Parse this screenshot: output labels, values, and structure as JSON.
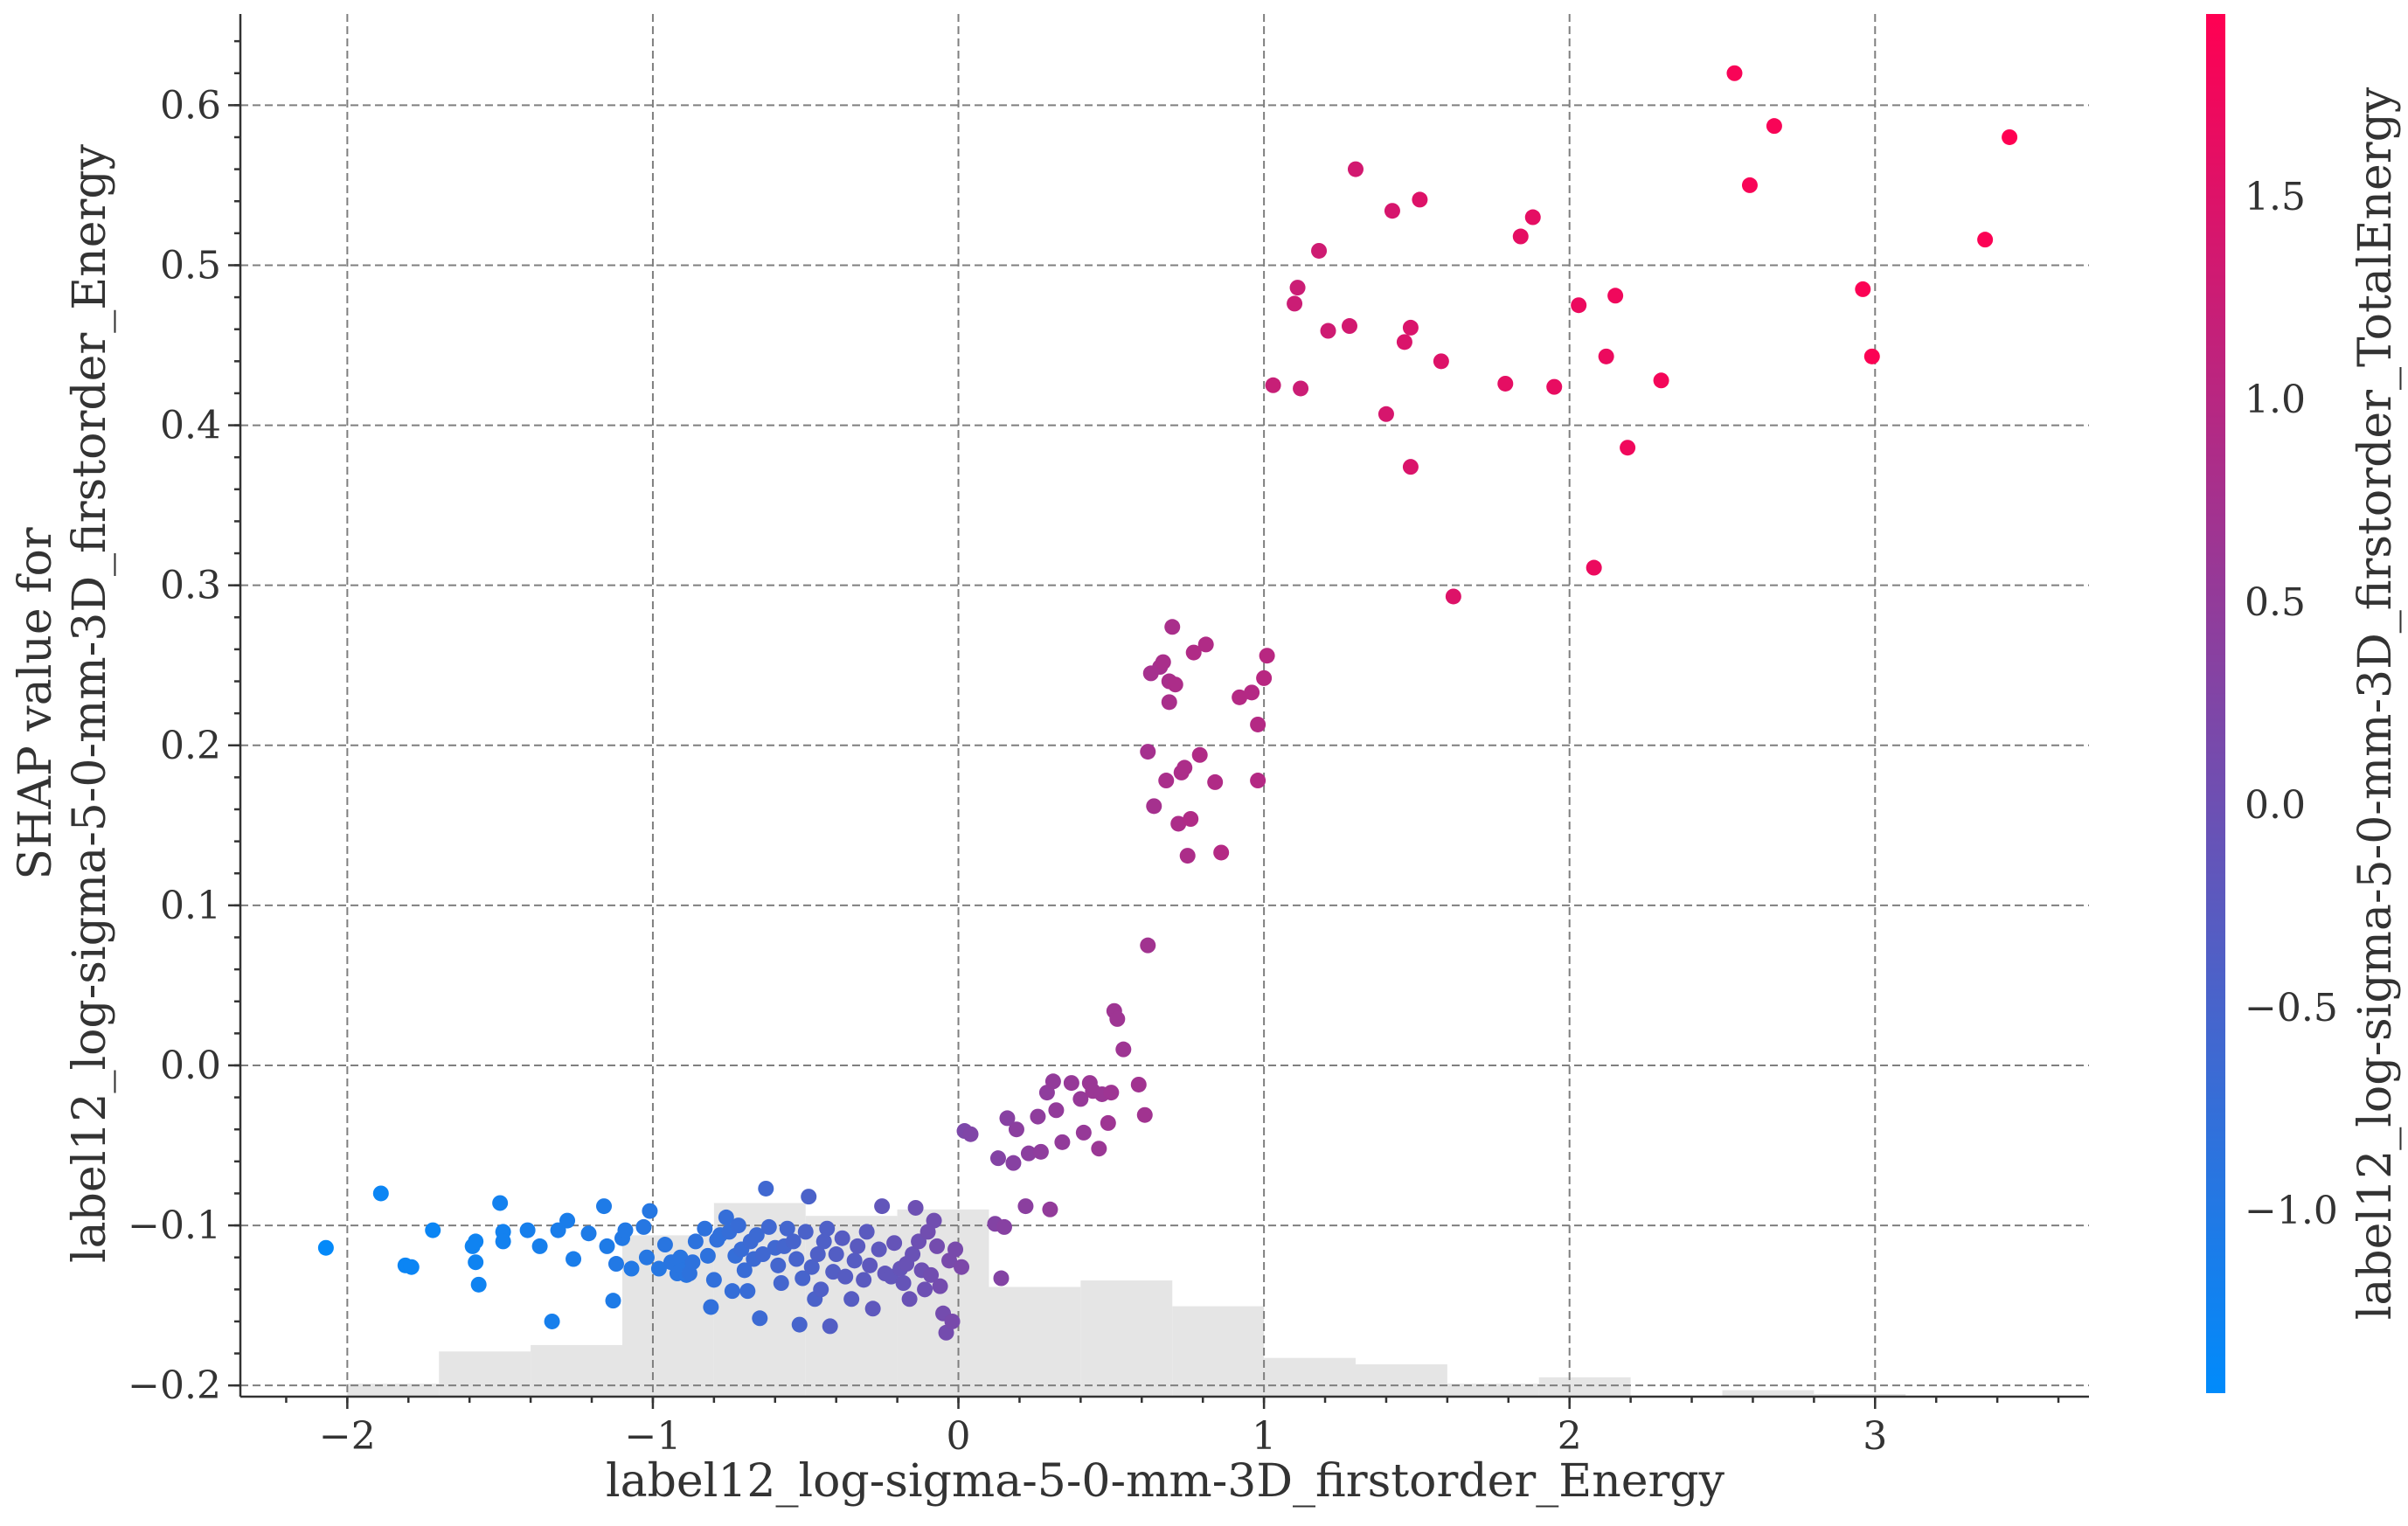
{
  "chart_data": {
    "type": "scatter",
    "title": "",
    "xlabel": "label12_log-sigma-5-0-mm-3D_firstorder_Energy",
    "ylabel": "SHAP value for\nlabel12_log-sigma-5-0-mm-3D_firstorder_Energy",
    "colorbar_label": "label12_log-sigma-5-0-mm-3D_firstorder_TotalEnergy",
    "xlim": [
      -2.35,
      3.7
    ],
    "ylim": [
      -0.207,
      0.657
    ],
    "x_ticks": [
      -2,
      -1,
      0,
      1,
      2,
      3
    ],
    "x_tick_labels": [
      "−2",
      "−1",
      "0",
      "1",
      "2",
      "3"
    ],
    "y_ticks": [
      -0.2,
      -0.1,
      0.0,
      0.1,
      0.2,
      0.3,
      0.4,
      0.5,
      0.6
    ],
    "y_tick_labels": [
      "−0.2",
      "−0.1",
      "0.0",
      "0.1",
      "0.2",
      "0.3",
      "0.4",
      "0.5",
      "0.6"
    ],
    "colorbar_range": [
      -1.45,
      1.95
    ],
    "colorbar_ticks": [
      -1.0,
      -0.5,
      0.0,
      0.5,
      1.0,
      1.5
    ],
    "colorbar_tick_labels": [
      "−1.0",
      "−0.5",
      "0.0",
      "0.5",
      "1.0",
      "1.5"
    ],
    "colormap": [
      "#008bfb",
      "#ff0052"
    ],
    "grid": true,
    "histogram_color": "#e5e5e5",
    "histogram": {
      "bin_edges": [
        -2.0,
        -1.7,
        -1.4,
        -1.1,
        -0.8,
        -0.5,
        -0.2,
        0.1,
        0.4,
        0.7,
        1.0,
        1.3,
        1.6,
        1.9,
        2.2,
        2.5,
        2.8,
        3.1,
        3.4
      ],
      "counts": [
        2,
        7,
        8,
        25,
        30,
        28,
        29,
        17,
        18,
        14,
        6,
        5,
        2,
        3,
        0,
        1,
        0.4,
        0
      ]
    },
    "points": [
      {
        "x": -2.07,
        "y": -0.114,
        "c": -1.4
      },
      {
        "x": -1.89,
        "y": -0.08,
        "c": -1.3
      },
      {
        "x": -1.81,
        "y": -0.125,
        "c": -1.3
      },
      {
        "x": -1.79,
        "y": -0.126,
        "c": -1.3
      },
      {
        "x": -1.72,
        "y": -0.103,
        "c": -1.3
      },
      {
        "x": -1.59,
        "y": -0.113,
        "c": -1.25
      },
      {
        "x": -1.58,
        "y": -0.11,
        "c": -1.25
      },
      {
        "x": -1.58,
        "y": -0.123,
        "c": -1.25
      },
      {
        "x": -1.57,
        "y": -0.137,
        "c": -1.25
      },
      {
        "x": -1.5,
        "y": -0.086,
        "c": -1.2
      },
      {
        "x": -1.49,
        "y": -0.104,
        "c": -1.2
      },
      {
        "x": -1.49,
        "y": -0.11,
        "c": -1.2
      },
      {
        "x": -1.41,
        "y": -0.103,
        "c": -1.15
      },
      {
        "x": -1.37,
        "y": -0.113,
        "c": -1.15
      },
      {
        "x": -1.33,
        "y": -0.16,
        "c": -1.15
      },
      {
        "x": -1.31,
        "y": -0.103,
        "c": -1.1
      },
      {
        "x": -1.28,
        "y": -0.097,
        "c": -1.1
      },
      {
        "x": -1.26,
        "y": -0.121,
        "c": -1.1
      },
      {
        "x": -1.21,
        "y": -0.105,
        "c": -1.05
      },
      {
        "x": -1.16,
        "y": -0.088,
        "c": -1.05
      },
      {
        "x": -1.15,
        "y": -0.113,
        "c": -1.05
      },
      {
        "x": -1.13,
        "y": -0.147,
        "c": -1.05
      },
      {
        "x": -1.12,
        "y": -0.124,
        "c": -1.0
      },
      {
        "x": -1.1,
        "y": -0.108,
        "c": -1.0
      },
      {
        "x": -1.09,
        "y": -0.103,
        "c": -1.0
      },
      {
        "x": -1.07,
        "y": -0.127,
        "c": -1.0
      },
      {
        "x": -1.03,
        "y": -0.101,
        "c": -0.95
      },
      {
        "x": -1.02,
        "y": -0.12,
        "c": -0.95
      },
      {
        "x": -1.01,
        "y": -0.091,
        "c": -0.95
      },
      {
        "x": -0.98,
        "y": -0.127,
        "c": -0.95
      },
      {
        "x": -0.96,
        "y": -0.112,
        "c": -0.9
      },
      {
        "x": -0.94,
        "y": -0.123,
        "c": -0.9
      },
      {
        "x": -0.92,
        "y": -0.13,
        "c": -0.9
      },
      {
        "x": -0.91,
        "y": -0.12,
        "c": -0.9
      },
      {
        "x": -0.9,
        "y": -0.128,
        "c": -0.9
      },
      {
        "x": -0.89,
        "y": -0.131,
        "c": -0.9
      },
      {
        "x": -0.88,
        "y": -0.13,
        "c": -0.85
      },
      {
        "x": -0.87,
        "y": -0.123,
        "c": -0.85
      },
      {
        "x": -0.86,
        "y": -0.11,
        "c": -0.85
      },
      {
        "x": -0.83,
        "y": -0.102,
        "c": -0.85
      },
      {
        "x": -0.82,
        "y": -0.119,
        "c": -0.85
      },
      {
        "x": -0.81,
        "y": -0.151,
        "c": -0.8
      },
      {
        "x": -0.8,
        "y": -0.134,
        "c": -0.8
      },
      {
        "x": -0.79,
        "y": -0.109,
        "c": -0.8
      },
      {
        "x": -0.78,
        "y": -0.106,
        "c": -0.8
      },
      {
        "x": -0.76,
        "y": -0.095,
        "c": -0.75
      },
      {
        "x": -0.75,
        "y": -0.104,
        "c": -0.75
      },
      {
        "x": -0.74,
        "y": -0.141,
        "c": -0.75
      },
      {
        "x": -0.73,
        "y": -0.119,
        "c": -0.75
      },
      {
        "x": -0.72,
        "y": -0.1,
        "c": -0.7
      },
      {
        "x": -0.71,
        "y": -0.115,
        "c": -0.7
      },
      {
        "x": -0.7,
        "y": -0.128,
        "c": -0.7
      },
      {
        "x": -0.69,
        "y": -0.141,
        "c": -0.7
      },
      {
        "x": -0.68,
        "y": -0.11,
        "c": -0.65
      },
      {
        "x": -0.67,
        "y": -0.121,
        "c": -0.65
      },
      {
        "x": -0.66,
        "y": -0.106,
        "c": -0.65
      },
      {
        "x": -0.65,
        "y": -0.158,
        "c": -0.65
      },
      {
        "x": -0.64,
        "y": -0.118,
        "c": -0.6
      },
      {
        "x": -0.63,
        "y": -0.077,
        "c": -0.6
      },
      {
        "x": -0.62,
        "y": -0.101,
        "c": -0.6
      },
      {
        "x": -0.6,
        "y": -0.114,
        "c": -0.6
      },
      {
        "x": -0.59,
        "y": -0.125,
        "c": -0.55
      },
      {
        "x": -0.58,
        "y": -0.136,
        "c": -0.55
      },
      {
        "x": -0.57,
        "y": -0.113,
        "c": -0.55
      },
      {
        "x": -0.56,
        "y": -0.102,
        "c": -0.55
      },
      {
        "x": -0.54,
        "y": -0.11,
        "c": -0.5
      },
      {
        "x": -0.53,
        "y": -0.121,
        "c": -0.5
      },
      {
        "x": -0.52,
        "y": -0.162,
        "c": -0.5
      },
      {
        "x": -0.51,
        "y": -0.133,
        "c": -0.5
      },
      {
        "x": -0.5,
        "y": -0.104,
        "c": -0.45
      },
      {
        "x": -0.49,
        "y": -0.082,
        "c": -0.45
      },
      {
        "x": -0.48,
        "y": -0.126,
        "c": -0.45
      },
      {
        "x": -0.47,
        "y": -0.146,
        "c": -0.45
      },
      {
        "x": -0.46,
        "y": -0.118,
        "c": -0.4
      },
      {
        "x": -0.45,
        "y": -0.14,
        "c": -0.4
      },
      {
        "x": -0.44,
        "y": -0.11,
        "c": -0.4
      },
      {
        "x": -0.43,
        "y": -0.102,
        "c": -0.4
      },
      {
        "x": -0.42,
        "y": -0.163,
        "c": -0.35
      },
      {
        "x": -0.41,
        "y": -0.129,
        "c": -0.35
      },
      {
        "x": -0.4,
        "y": -0.118,
        "c": -0.35
      },
      {
        "x": -0.38,
        "y": -0.108,
        "c": -0.3
      },
      {
        "x": -0.37,
        "y": -0.132,
        "c": -0.3
      },
      {
        "x": -0.35,
        "y": -0.146,
        "c": -0.3
      },
      {
        "x": -0.34,
        "y": -0.122,
        "c": -0.3
      },
      {
        "x": -0.33,
        "y": -0.113,
        "c": -0.25
      },
      {
        "x": -0.31,
        "y": -0.134,
        "c": -0.25
      },
      {
        "x": -0.3,
        "y": -0.104,
        "c": -0.25
      },
      {
        "x": -0.29,
        "y": -0.125,
        "c": -0.2
      },
      {
        "x": -0.28,
        "y": -0.152,
        "c": -0.2
      },
      {
        "x": -0.26,
        "y": -0.115,
        "c": -0.2
      },
      {
        "x": -0.25,
        "y": -0.088,
        "c": -0.15
      },
      {
        "x": -0.24,
        "y": -0.13,
        "c": -0.15
      },
      {
        "x": -0.22,
        "y": -0.132,
        "c": -0.15
      },
      {
        "x": -0.21,
        "y": -0.111,
        "c": -0.1
      },
      {
        "x": -0.19,
        "y": -0.127,
        "c": -0.1
      },
      {
        "x": -0.18,
        "y": -0.136,
        "c": -0.1
      },
      {
        "x": -0.17,
        "y": -0.124,
        "c": -0.05
      },
      {
        "x": -0.16,
        "y": -0.146,
        "c": -0.05
      },
      {
        "x": -0.15,
        "y": -0.118,
        "c": -0.05
      },
      {
        "x": -0.14,
        "y": -0.089,
        "c": 0.0
      },
      {
        "x": -0.13,
        "y": -0.11,
        "c": 0.0
      },
      {
        "x": -0.12,
        "y": -0.128,
        "c": 0.0
      },
      {
        "x": -0.11,
        "y": -0.14,
        "c": 0.0
      },
      {
        "x": -0.1,
        "y": -0.104,
        "c": 0.05
      },
      {
        "x": -0.09,
        "y": -0.131,
        "c": 0.05
      },
      {
        "x": -0.08,
        "y": -0.097,
        "c": 0.05
      },
      {
        "x": -0.07,
        "y": -0.113,
        "c": 0.1
      },
      {
        "x": -0.06,
        "y": -0.138,
        "c": 0.1
      },
      {
        "x": -0.05,
        "y": -0.155,
        "c": 0.1
      },
      {
        "x": -0.04,
        "y": -0.167,
        "c": 0.1
      },
      {
        "x": -0.03,
        "y": -0.122,
        "c": 0.15
      },
      {
        "x": -0.02,
        "y": -0.16,
        "c": 0.15
      },
      {
        "x": -0.01,
        "y": -0.115,
        "c": 0.15
      },
      {
        "x": 0.01,
        "y": -0.126,
        "c": 0.2
      },
      {
        "x": 0.02,
        "y": -0.041,
        "c": 0.2
      },
      {
        "x": 0.04,
        "y": -0.043,
        "c": 0.25
      },
      {
        "x": 0.12,
        "y": -0.099,
        "c": 0.3
      },
      {
        "x": 0.13,
        "y": -0.058,
        "c": 0.3
      },
      {
        "x": 0.14,
        "y": -0.133,
        "c": 0.3
      },
      {
        "x": 0.15,
        "y": -0.101,
        "c": 0.35
      },
      {
        "x": 0.16,
        "y": -0.033,
        "c": 0.35
      },
      {
        "x": 0.18,
        "y": -0.061,
        "c": 0.35
      },
      {
        "x": 0.19,
        "y": -0.04,
        "c": 0.4
      },
      {
        "x": 0.22,
        "y": -0.088,
        "c": 0.4
      },
      {
        "x": 0.23,
        "y": -0.055,
        "c": 0.4
      },
      {
        "x": 0.26,
        "y": -0.032,
        "c": 0.45
      },
      {
        "x": 0.27,
        "y": -0.054,
        "c": 0.45
      },
      {
        "x": 0.29,
        "y": -0.017,
        "c": 0.45
      },
      {
        "x": 0.3,
        "y": -0.09,
        "c": 0.5
      },
      {
        "x": 0.31,
        "y": -0.01,
        "c": 0.5
      },
      {
        "x": 0.32,
        "y": -0.028,
        "c": 0.5
      },
      {
        "x": 0.34,
        "y": -0.048,
        "c": 0.5
      },
      {
        "x": 0.37,
        "y": -0.011,
        "c": 0.55
      },
      {
        "x": 0.4,
        "y": -0.021,
        "c": 0.55
      },
      {
        "x": 0.41,
        "y": -0.042,
        "c": 0.55
      },
      {
        "x": 0.43,
        "y": -0.011,
        "c": 0.6
      },
      {
        "x": 0.44,
        "y": -0.016,
        "c": 0.6
      },
      {
        "x": 0.46,
        "y": -0.052,
        "c": 0.6
      },
      {
        "x": 0.47,
        "y": -0.018,
        "c": 0.6
      },
      {
        "x": 0.49,
        "y": -0.036,
        "c": 0.65
      },
      {
        "x": 0.5,
        "y": -0.017,
        "c": 0.65
      },
      {
        "x": 0.51,
        "y": 0.034,
        "c": 0.65
      },
      {
        "x": 0.52,
        "y": 0.029,
        "c": 0.65
      },
      {
        "x": 0.54,
        "y": 0.01,
        "c": 0.65
      },
      {
        "x": 0.59,
        "y": -0.012,
        "c": 0.7
      },
      {
        "x": 0.61,
        "y": -0.031,
        "c": 0.7
      },
      {
        "x": 0.62,
        "y": 0.075,
        "c": 0.7
      },
      {
        "x": 0.62,
        "y": 0.196,
        "c": 0.75
      },
      {
        "x": 0.63,
        "y": 0.245,
        "c": 0.75
      },
      {
        "x": 0.64,
        "y": 0.162,
        "c": 0.75
      },
      {
        "x": 0.66,
        "y": 0.249,
        "c": 0.75
      },
      {
        "x": 0.67,
        "y": 0.252,
        "c": 0.8
      },
      {
        "x": 0.68,
        "y": 0.178,
        "c": 0.8
      },
      {
        "x": 0.69,
        "y": 0.24,
        "c": 0.8
      },
      {
        "x": 0.69,
        "y": 0.227,
        "c": 0.8
      },
      {
        "x": 0.7,
        "y": 0.274,
        "c": 0.8
      },
      {
        "x": 0.71,
        "y": 0.238,
        "c": 0.85
      },
      {
        "x": 0.72,
        "y": 0.151,
        "c": 0.85
      },
      {
        "x": 0.73,
        "y": 0.183,
        "c": 0.85
      },
      {
        "x": 0.74,
        "y": 0.186,
        "c": 0.85
      },
      {
        "x": 0.75,
        "y": 0.131,
        "c": 0.85
      },
      {
        "x": 0.76,
        "y": 0.154,
        "c": 0.9
      },
      {
        "x": 0.77,
        "y": 0.258,
        "c": 0.9
      },
      {
        "x": 0.79,
        "y": 0.194,
        "c": 0.9
      },
      {
        "x": 0.81,
        "y": 0.263,
        "c": 0.9
      },
      {
        "x": 0.84,
        "y": 0.177,
        "c": 0.9
      },
      {
        "x": 0.86,
        "y": 0.133,
        "c": 0.95
      },
      {
        "x": 0.92,
        "y": 0.23,
        "c": 0.95
      },
      {
        "x": 0.96,
        "y": 0.233,
        "c": 0.95
      },
      {
        "x": 0.98,
        "y": 0.213,
        "c": 0.95
      },
      {
        "x": 0.98,
        "y": 0.178,
        "c": 0.95
      },
      {
        "x": 1.0,
        "y": 0.242,
        "c": 1.0
      },
      {
        "x": 1.01,
        "y": 0.256,
        "c": 1.0
      },
      {
        "x": 1.03,
        "y": 0.425,
        "c": 1.2
      },
      {
        "x": 1.1,
        "y": 0.476,
        "c": 1.25
      },
      {
        "x": 1.11,
        "y": 0.486,
        "c": 1.25
      },
      {
        "x": 1.12,
        "y": 0.423,
        "c": 1.25
      },
      {
        "x": 1.18,
        "y": 0.509,
        "c": 1.3
      },
      {
        "x": 1.21,
        "y": 0.459,
        "c": 1.3
      },
      {
        "x": 1.28,
        "y": 0.462,
        "c": 1.35
      },
      {
        "x": 1.3,
        "y": 0.56,
        "c": 1.35
      },
      {
        "x": 1.4,
        "y": 0.407,
        "c": 1.4
      },
      {
        "x": 1.42,
        "y": 0.534,
        "c": 1.4
      },
      {
        "x": 1.46,
        "y": 0.452,
        "c": 1.45
      },
      {
        "x": 1.48,
        "y": 0.374,
        "c": 1.45
      },
      {
        "x": 1.48,
        "y": 0.461,
        "c": 1.45
      },
      {
        "x": 1.51,
        "y": 0.541,
        "c": 1.5
      },
      {
        "x": 1.58,
        "y": 0.44,
        "c": 1.5
      },
      {
        "x": 1.62,
        "y": 0.293,
        "c": 1.5
      },
      {
        "x": 1.79,
        "y": 0.426,
        "c": 1.6
      },
      {
        "x": 1.84,
        "y": 0.518,
        "c": 1.6
      },
      {
        "x": 1.88,
        "y": 0.53,
        "c": 1.6
      },
      {
        "x": 1.95,
        "y": 0.424,
        "c": 1.65
      },
      {
        "x": 2.03,
        "y": 0.475,
        "c": 1.7
      },
      {
        "x": 2.08,
        "y": 0.311,
        "c": 1.7
      },
      {
        "x": 2.12,
        "y": 0.443,
        "c": 1.7
      },
      {
        "x": 2.15,
        "y": 0.481,
        "c": 1.75
      },
      {
        "x": 2.19,
        "y": 0.386,
        "c": 1.75
      },
      {
        "x": 2.3,
        "y": 0.428,
        "c": 1.8
      },
      {
        "x": 2.54,
        "y": 0.62,
        "c": 1.85
      },
      {
        "x": 2.59,
        "y": 0.55,
        "c": 1.85
      },
      {
        "x": 2.67,
        "y": 0.587,
        "c": 1.85
      },
      {
        "x": 2.96,
        "y": 0.485,
        "c": 1.9
      },
      {
        "x": 2.99,
        "y": 0.443,
        "c": 1.9
      },
      {
        "x": 3.36,
        "y": 0.516,
        "c": 1.9
      },
      {
        "x": 3.44,
        "y": 0.58,
        "c": 1.95
      }
    ]
  }
}
